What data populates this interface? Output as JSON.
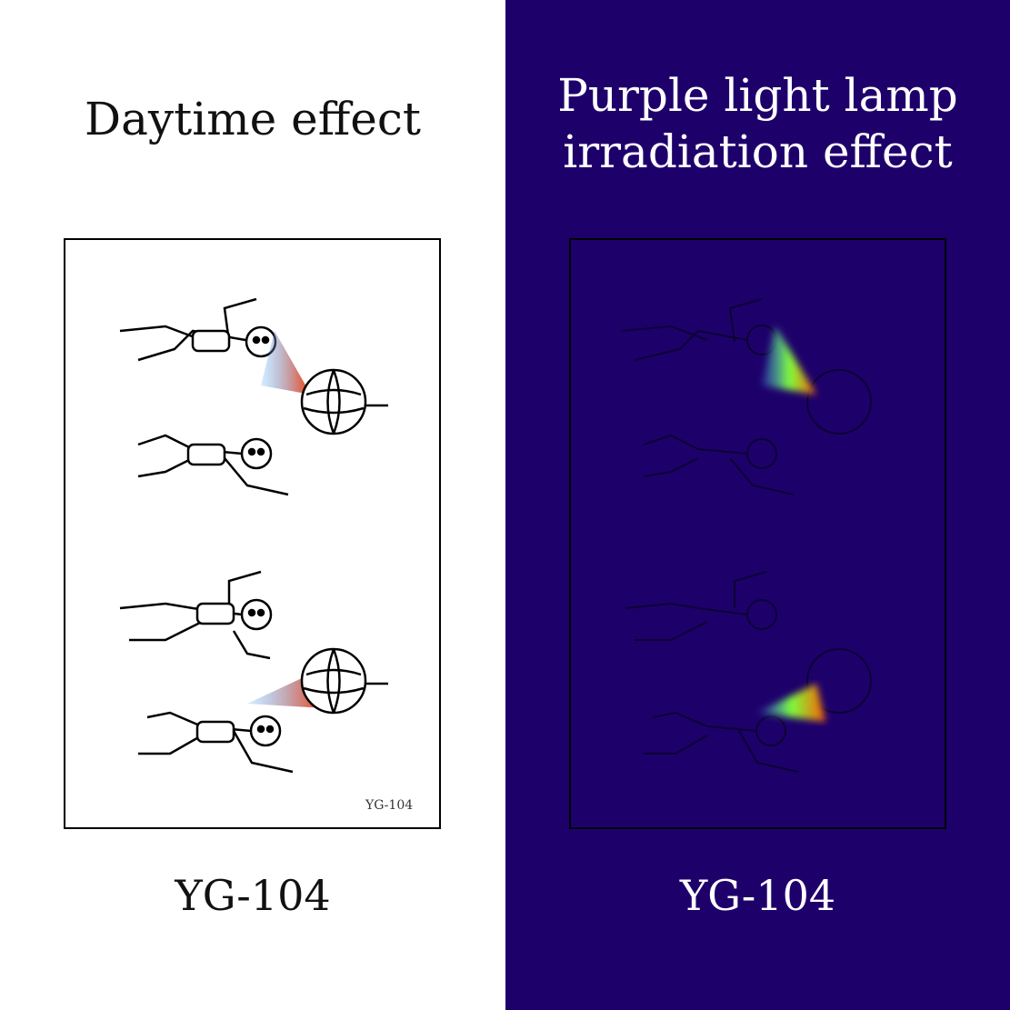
{
  "left_panel": {
    "title": "Daytime effect",
    "sheet_code": "YG-104",
    "caption": "YG-104"
  },
  "right_panel": {
    "title_line1": "Purple light lamp",
    "title_line2": "irradiation effect",
    "caption": "YG-104"
  },
  "colors": {
    "uv_background": "#1e006b",
    "day_background": "#ffffff"
  }
}
